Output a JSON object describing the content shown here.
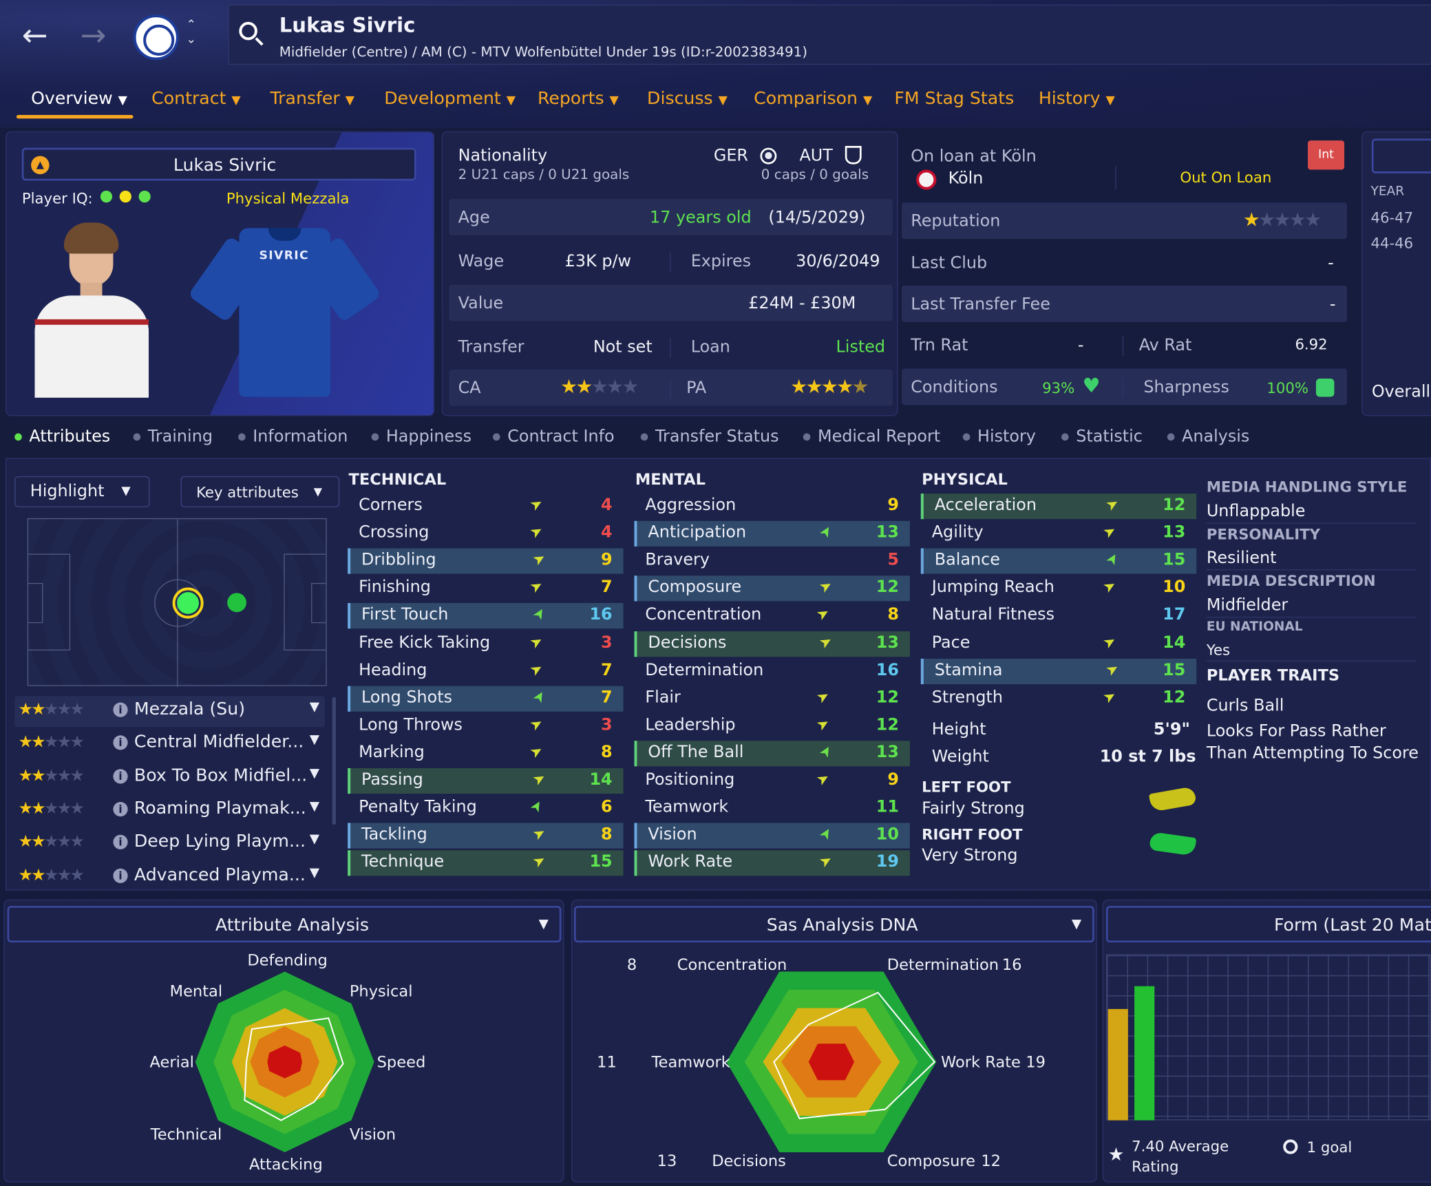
{
  "header": {
    "player_name": "Lukas Sivric",
    "subtitle": "Midfielder (Centre) / AM (C) - MTV Wolfenbüttel Under 19s (ID:r-2002383491)"
  },
  "tabs": [
    {
      "label": "Overview",
      "active": true
    },
    {
      "label": "Contract"
    },
    {
      "label": "Transfer"
    },
    {
      "label": "Development"
    },
    {
      "label": "Reports"
    },
    {
      "label": "Discuss"
    },
    {
      "label": "Comparison"
    },
    {
      "label": "FM Stag Stats"
    },
    {
      "label": "History"
    }
  ],
  "profile": {
    "name": "Lukas Sivric",
    "player_iq_label": "Player IQ:",
    "role_label": "Physical Mezzala",
    "shirt_name": "SIVRIC"
  },
  "nationality": {
    "label": "Nationality",
    "caps1": "2 U21 caps / 0 U21 goals",
    "nat1": "GER",
    "nat2": "AUT",
    "caps2": "0 caps / 0 goals"
  },
  "details": {
    "age_label": "Age",
    "age_value": "17 years old",
    "dob": "(14/5/2029)",
    "wage_label": "Wage",
    "wage_value": "£3K p/w",
    "expires_label": "Expires",
    "expires_value": "30/6/2049",
    "value_label": "Value",
    "value_value": "£24M - £30M",
    "transfer_label": "Transfer",
    "transfer_value": "Not set",
    "loan_label": "Loan",
    "loan_value": "Listed",
    "ca_label": "CA",
    "ca_stars": 2,
    "pa_label": "PA",
    "pa_stars": 4.5
  },
  "loan": {
    "title": "On loan at Köln",
    "club": "Köln",
    "status": "Out On Loan",
    "badge": "Int",
    "reputation_label": "Reputation",
    "reputation_stars": 1,
    "last_club_label": "Last Club",
    "last_club_value": "-",
    "last_fee_label": "Last Transfer Fee",
    "last_fee_value": "-",
    "trn_rat_label": "Trn Rat",
    "trn_rat_value": "-",
    "av_rat_label": "Av Rat",
    "av_rat_value": "6.92",
    "conditions_label": "Conditions",
    "conditions_value": "93%",
    "sharpness_label": "Sharpness",
    "sharpness_value": "100%"
  },
  "history_mini": {
    "year_label": "YEAR",
    "rows": [
      "46-47",
      "44-46"
    ],
    "overall_label": "Overall"
  },
  "subtabs": [
    "Attributes",
    "Training",
    "Information",
    "Happiness",
    "Contract Info",
    "Transfer Status",
    "Medical Report",
    "History",
    "Statistic",
    "Analysis"
  ],
  "controls": {
    "highlight": "Highlight",
    "key_attributes": "Key attributes"
  },
  "roles": [
    {
      "name": "Mezzala (Su)",
      "stars": 2,
      "selected": true
    },
    {
      "name": "Central Midfielder...",
      "stars": 2
    },
    {
      "name": "Box To Box Midfiel...",
      "stars": 2
    },
    {
      "name": "Roaming Playmak...",
      "stars": 2
    },
    {
      "name": "Deep Lying Playm...",
      "stars": 2
    },
    {
      "name": "Advanced Playma...",
      "stars": 2
    }
  ],
  "technical": {
    "title": "TECHNICAL",
    "items": [
      {
        "name": "Corners",
        "value": "4",
        "c": "red",
        "a": "up"
      },
      {
        "name": "Crossing",
        "value": "4",
        "c": "red",
        "a": "up"
      },
      {
        "name": "Dribbling",
        "value": "9",
        "c": "yel",
        "a": "up",
        "h": "hl"
      },
      {
        "name": "Finishing",
        "value": "7",
        "c": "yel",
        "a": "up"
      },
      {
        "name": "First Touch",
        "value": "16",
        "c": "blu",
        "a": "down",
        "h": "hl"
      },
      {
        "name": "Free Kick Taking",
        "value": "3",
        "c": "red",
        "a": "up"
      },
      {
        "name": "Heading",
        "value": "7",
        "c": "yel",
        "a": "up"
      },
      {
        "name": "Long Shots",
        "value": "7",
        "c": "yel",
        "a": "down",
        "h": "hl"
      },
      {
        "name": "Long Throws",
        "value": "3",
        "c": "red",
        "a": "up"
      },
      {
        "name": "Marking",
        "value": "8",
        "c": "yel",
        "a": "up"
      },
      {
        "name": "Passing",
        "value": "14",
        "c": "grn",
        "a": "up",
        "h": "hg"
      },
      {
        "name": "Penalty Taking",
        "value": "6",
        "c": "yel",
        "a": "down"
      },
      {
        "name": "Tackling",
        "value": "8",
        "c": "yel",
        "a": "up",
        "h": "hl"
      },
      {
        "name": "Technique",
        "value": "15",
        "c": "grn",
        "a": "up",
        "h": "hg"
      }
    ]
  },
  "mental": {
    "title": "MENTAL",
    "items": [
      {
        "name": "Aggression",
        "value": "9",
        "c": "yel",
        "a": ""
      },
      {
        "name": "Anticipation",
        "value": "13",
        "c": "grn",
        "a": "down",
        "h": "hl"
      },
      {
        "name": "Bravery",
        "value": "5",
        "c": "red",
        "a": ""
      },
      {
        "name": "Composure",
        "value": "12",
        "c": "grn",
        "a": "up",
        "h": "hl"
      },
      {
        "name": "Concentration",
        "value": "8",
        "c": "yel",
        "a": "up"
      },
      {
        "name": "Decisions",
        "value": "13",
        "c": "grn",
        "a": "up",
        "h": "hg"
      },
      {
        "name": "Determination",
        "value": "16",
        "c": "blu",
        "a": ""
      },
      {
        "name": "Flair",
        "value": "12",
        "c": "grn",
        "a": "up"
      },
      {
        "name": "Leadership",
        "value": "12",
        "c": "grn",
        "a": "up"
      },
      {
        "name": "Off The Ball",
        "value": "13",
        "c": "grn",
        "a": "down",
        "h": "hg"
      },
      {
        "name": "Positioning",
        "value": "9",
        "c": "yel",
        "a": "up"
      },
      {
        "name": "Teamwork",
        "value": "11",
        "c": "grn",
        "a": ""
      },
      {
        "name": "Vision",
        "value": "10",
        "c": "grn",
        "a": "down",
        "h": "hl"
      },
      {
        "name": "Work Rate",
        "value": "19",
        "c": "blu",
        "a": "up",
        "h": "hg"
      }
    ]
  },
  "physical": {
    "title": "PHYSICAL",
    "items": [
      {
        "name": "Acceleration",
        "value": "12",
        "c": "grn",
        "a": "up",
        "h": "hg"
      },
      {
        "name": "Agility",
        "value": "13",
        "c": "grn",
        "a": "up"
      },
      {
        "name": "Balance",
        "value": "15",
        "c": "grn",
        "a": "down",
        "h": "hl"
      },
      {
        "name": "Jumping Reach",
        "value": "10",
        "c": "yel",
        "a": "up"
      },
      {
        "name": "Natural Fitness",
        "value": "17",
        "c": "blu",
        "a": ""
      },
      {
        "name": "Pace",
        "value": "14",
        "c": "grn",
        "a": "up"
      },
      {
        "name": "Stamina",
        "value": "15",
        "c": "grn",
        "a": "up",
        "h": "hl"
      },
      {
        "name": "Strength",
        "value": "12",
        "c": "grn",
        "a": "up"
      }
    ],
    "height_label": "Height",
    "height_value": "5'9\"",
    "weight_label": "Weight",
    "weight_value": "10 st 7 lbs",
    "left_foot_label": "LEFT FOOT",
    "left_foot_value": "Fairly Strong",
    "right_foot_label": "RIGHT FOOT",
    "right_foot_value": "Very Strong"
  },
  "side": {
    "media_style_label": "MEDIA HANDLING STYLE",
    "media_style_value": "Unflappable",
    "personality_label": "PERSONALITY",
    "personality_value": "Resilient",
    "media_desc_label": "MEDIA DESCRIPTION",
    "media_desc_value": "Midfielder",
    "eu_label": "EU NATIONAL",
    "eu_value": "Yes",
    "traits_label": "PLAYER TRAITS",
    "trait1": "Curls Ball",
    "trait2a": "Looks For Pass Rather",
    "trait2b": "Than Attempting To Score"
  },
  "attr_analysis": {
    "title": "Attribute Analysis",
    "labels": [
      "Defending",
      "Physical",
      "Speed",
      "Vision",
      "Attacking",
      "Technical",
      "Aerial",
      "Mental"
    ]
  },
  "sas": {
    "title": "Sas Analysis DNA",
    "labels": [
      {
        "name": "Concentration",
        "value": "8"
      },
      {
        "name": "Determination",
        "value": "16"
      },
      {
        "name": "Work Rate",
        "value": "19"
      },
      {
        "name": "Composure",
        "value": "12"
      },
      {
        "name": "Decisions",
        "value": "13"
      },
      {
        "name": "Teamwork",
        "value": "11"
      }
    ]
  },
  "form": {
    "title": "Form (Last 20 Matc",
    "avg": "7.40 Average",
    "avg2": "Rating",
    "goals": "1 goal"
  },
  "colors": {
    "accent": "#f5a623",
    "panel": "#1c2249",
    "row": "#262d57"
  }
}
